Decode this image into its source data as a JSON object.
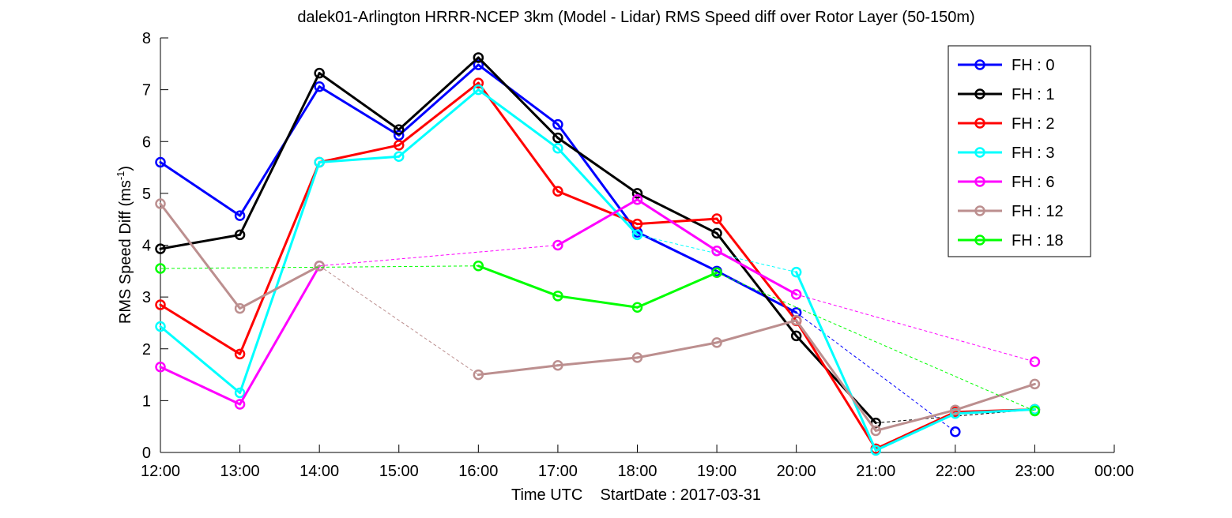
{
  "chart_data": {
    "type": "line",
    "title": "dalek01-Arlington HRRR-NCEP 3km (Model - Lidar) RMS Speed diff over Rotor Layer (50-150m)",
    "xlabel": "Time UTC    StartDate : 2017-03-31",
    "ylabel_main": "RMS Speed Diff (ms",
    "ylabel_sup": "-1",
    "ylabel_tail": ")",
    "x_ticks": [
      "12:00",
      "13:00",
      "14:00",
      "15:00",
      "16:00",
      "17:00",
      "18:00",
      "19:00",
      "20:00",
      "21:00",
      "22:00",
      "23:00",
      "00:00"
    ],
    "y_ticks": [
      "0",
      "1",
      "2",
      "3",
      "4",
      "5",
      "6",
      "7",
      "8"
    ],
    "ylim": [
      0,
      8
    ],
    "legend_position": "top-right",
    "grid": false,
    "series": [
      {
        "name": "FH : 0",
        "color": "#0000ff",
        "values": [
          5.6,
          4.57,
          7.06,
          6.12,
          7.48,
          6.33,
          4.25,
          3.5,
          2.7,
          null,
          0.4,
          null
        ]
      },
      {
        "name": "FH : 1",
        "color": "#000000",
        "values": [
          3.93,
          4.2,
          7.32,
          6.23,
          7.62,
          6.07,
          5.0,
          4.23,
          2.25,
          0.57,
          null,
          0.83
        ]
      },
      {
        "name": "FH : 2",
        "color": "#ff0000",
        "values": [
          2.85,
          1.9,
          5.6,
          5.93,
          7.13,
          5.04,
          4.41,
          4.51,
          2.54,
          0.07,
          0.78,
          0.83
        ]
      },
      {
        "name": "FH : 3",
        "color": "#00ffff",
        "values": [
          2.43,
          1.15,
          5.6,
          5.71,
          7.0,
          5.87,
          4.2,
          null,
          3.48,
          0.04,
          0.75,
          0.83
        ]
      },
      {
        "name": "FH : 6",
        "color": "#ff00ff",
        "values": [
          1.65,
          0.93,
          3.6,
          null,
          null,
          4.0,
          4.88,
          3.89,
          3.05,
          null,
          null,
          1.75
        ]
      },
      {
        "name": "FH : 12",
        "color": "#bc8f8f",
        "values": [
          4.8,
          2.78,
          3.6,
          null,
          1.5,
          1.68,
          1.83,
          2.12,
          2.55,
          0.42,
          0.82,
          1.32
        ]
      },
      {
        "name": "FH : 18",
        "color": "#00ff00",
        "values": [
          3.55,
          null,
          null,
          null,
          3.6,
          3.02,
          2.8,
          3.47,
          null,
          null,
          null,
          0.8
        ]
      }
    ]
  }
}
